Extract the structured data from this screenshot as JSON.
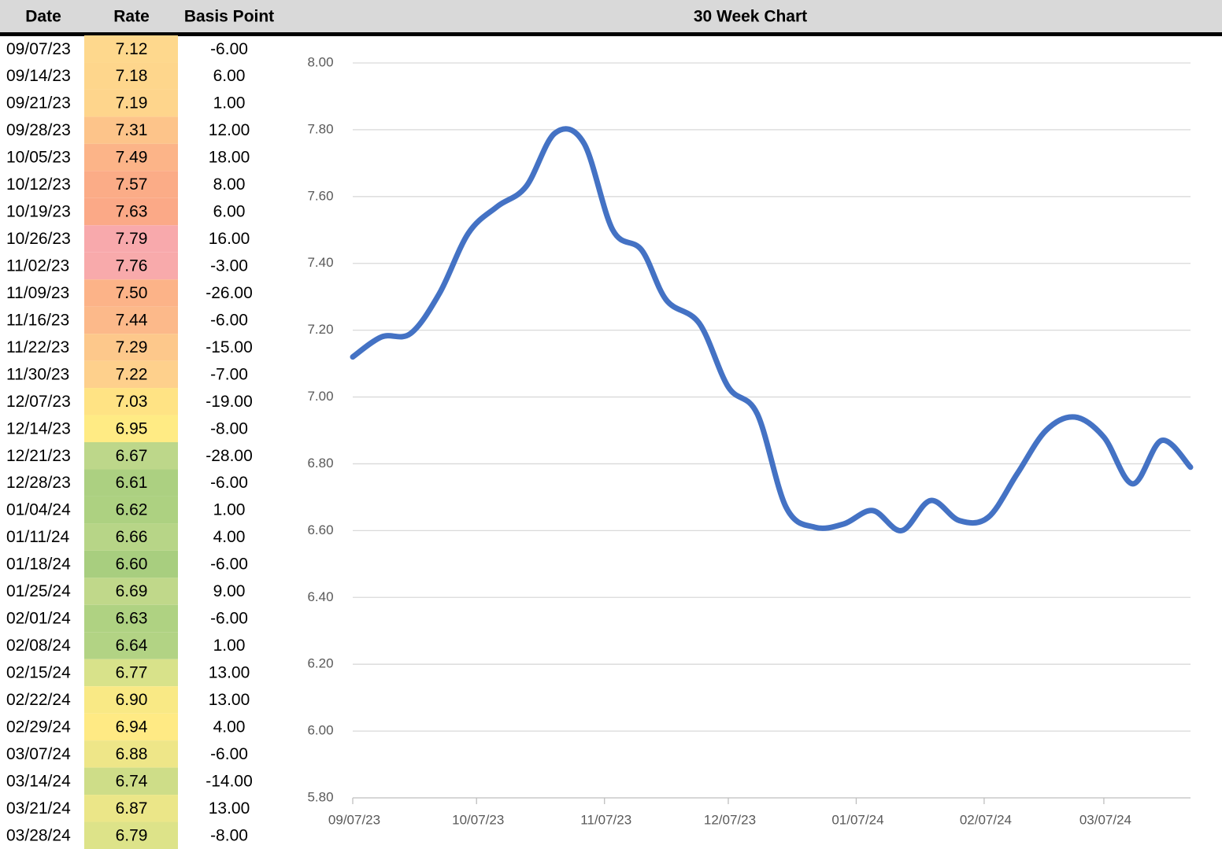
{
  "table": {
    "headers": [
      "Date",
      "Rate",
      "Basis Point"
    ],
    "rows": [
      [
        "09/07/23",
        "7.12",
        "-6.00"
      ],
      [
        "09/14/23",
        "7.18",
        "6.00"
      ],
      [
        "09/21/23",
        "7.19",
        "1.00"
      ],
      [
        "09/28/23",
        "7.31",
        "12.00"
      ],
      [
        "10/05/23",
        "7.49",
        "18.00"
      ],
      [
        "10/12/23",
        "7.57",
        "8.00"
      ],
      [
        "10/19/23",
        "7.63",
        "6.00"
      ],
      [
        "10/26/23",
        "7.79",
        "16.00"
      ],
      [
        "11/02/23",
        "7.76",
        "-3.00"
      ],
      [
        "11/09/23",
        "7.50",
        "-26.00"
      ],
      [
        "11/16/23",
        "7.44",
        "-6.00"
      ],
      [
        "11/22/23",
        "7.29",
        "-15.00"
      ],
      [
        "11/30/23",
        "7.22",
        "-7.00"
      ],
      [
        "12/07/23",
        "7.03",
        "-19.00"
      ],
      [
        "12/14/23",
        "6.95",
        "-8.00"
      ],
      [
        "12/21/23",
        "6.67",
        "-28.00"
      ],
      [
        "12/28/23",
        "6.61",
        "-6.00"
      ],
      [
        "01/04/24",
        "6.62",
        "1.00"
      ],
      [
        "01/11/24",
        "6.66",
        "4.00"
      ],
      [
        "01/18/24",
        "6.60",
        "-6.00"
      ],
      [
        "01/25/24",
        "6.69",
        "9.00"
      ],
      [
        "02/01/24",
        "6.63",
        "-6.00"
      ],
      [
        "02/08/24",
        "6.64",
        "1.00"
      ],
      [
        "02/15/24",
        "6.77",
        "13.00"
      ],
      [
        "02/22/24",
        "6.90",
        "13.00"
      ],
      [
        "02/29/24",
        "6.94",
        "4.00"
      ],
      [
        "03/07/24",
        "6.88",
        "-6.00"
      ],
      [
        "03/14/24",
        "6.74",
        "-14.00"
      ],
      [
        "03/21/24",
        "6.87",
        "13.00"
      ],
      [
        "03/28/24",
        "6.79",
        "-8.00"
      ]
    ],
    "rate_colors": [
      "#fed88d",
      "#fed68c",
      "#fed58c",
      "#fdc48a",
      "#fcb488",
      "#fbac87",
      "#fba987",
      "#f8a9ac",
      "#f8aaab",
      "#fcb388",
      "#fcb98a",
      "#fdc88b",
      "#fed08c",
      "#ffe384",
      "#ffeb84",
      "#bdd78a",
      "#acd081",
      "#add181",
      "#b7d587",
      "#a8ce7f",
      "#c0d88a",
      "#afd282",
      "#b2d384",
      "#d8e28a",
      "#f9e985",
      "#ffea84",
      "#eee688",
      "#cedd88",
      "#ebe688",
      "#dde389"
    ]
  },
  "chart_data": {
    "type": "line",
    "title": "30 Week Chart",
    "x": [
      "09/07/23",
      "09/14/23",
      "09/21/23",
      "09/28/23",
      "10/05/23",
      "10/12/23",
      "10/19/23",
      "10/26/23",
      "11/02/23",
      "11/09/23",
      "11/16/23",
      "11/22/23",
      "11/30/23",
      "12/07/23",
      "12/14/23",
      "12/21/23",
      "12/28/23",
      "01/04/24",
      "01/11/24",
      "01/18/24",
      "01/25/24",
      "02/01/24",
      "02/08/24",
      "02/15/24",
      "02/22/24",
      "02/29/24",
      "03/07/24",
      "03/14/24",
      "03/21/24",
      "03/28/24"
    ],
    "series": [
      {
        "name": "Rate",
        "color": "#4472c4",
        "values": [
          7.12,
          7.18,
          7.19,
          7.31,
          7.49,
          7.57,
          7.63,
          7.79,
          7.76,
          7.5,
          7.44,
          7.29,
          7.22,
          7.03,
          6.95,
          6.67,
          6.61,
          6.62,
          6.66,
          6.6,
          6.69,
          6.63,
          6.64,
          6.77,
          6.9,
          6.94,
          6.88,
          6.74,
          6.87,
          6.79
        ]
      }
    ],
    "xlim": [
      "09/07/23",
      "03/28/24"
    ],
    "xticks": [
      "09/07/23",
      "10/07/23",
      "11/07/23",
      "12/07/23",
      "01/07/24",
      "02/07/24",
      "03/07/24"
    ],
    "ylim": [
      5.8,
      8
    ],
    "yticks": [
      {
        "value": 5.8,
        "label": "5.80"
      },
      {
        "value": 6,
        "label": "6.00"
      },
      {
        "value": 6.2,
        "label": "6.20"
      },
      {
        "value": 6.4,
        "label": "6.40"
      },
      {
        "value": 6.6,
        "label": "6.60"
      },
      {
        "value": 6.8,
        "label": "6.80"
      },
      {
        "value": 7,
        "label": "7.00"
      },
      {
        "value": 7.2,
        "label": "7.20"
      },
      {
        "value": 7.4,
        "label": "7.40"
      },
      {
        "value": 7.6,
        "label": "7.60"
      },
      {
        "value": 7.8,
        "label": "7.80"
      },
      {
        "value": 8,
        "label": "8.00"
      }
    ],
    "grid": true
  }
}
